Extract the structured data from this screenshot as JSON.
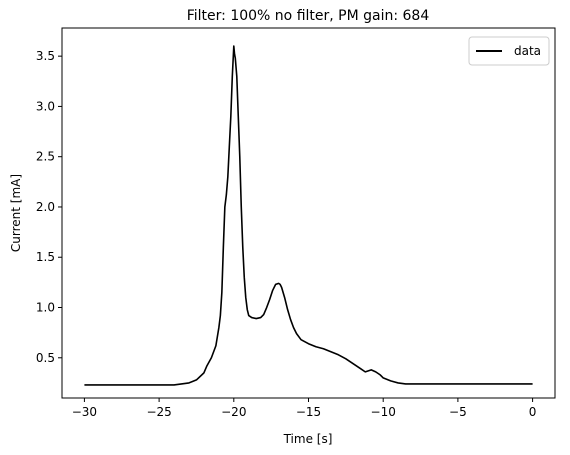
{
  "chart_data": {
    "type": "line",
    "title": "Filter: 100% no filter, PM gain: 684",
    "xlabel": "Time [s]",
    "ylabel": "Current [mA]",
    "xlim": [
      -31.5,
      1.5
    ],
    "ylim": [
      0.1,
      3.78
    ],
    "xticks": [
      -30,
      -25,
      -20,
      -15,
      -10,
      -5,
      0
    ],
    "xtick_labels": [
      "−30",
      "−25",
      "−20",
      "−15",
      "−10",
      "−5",
      "0"
    ],
    "yticks": [
      0.5,
      1.0,
      1.5,
      2.0,
      2.5,
      3.0,
      3.5
    ],
    "ytick_labels": [
      "0.5",
      "1.0",
      "1.5",
      "2.0",
      "2.5",
      "3.0",
      "3.5"
    ],
    "grid": false,
    "legend": {
      "position": "top-right"
    },
    "series": [
      {
        "name": "data",
        "color": "#000000",
        "x": [
          -30,
          -28,
          -26,
          -24,
          -23.5,
          -23,
          -22.5,
          -22,
          -21.8,
          -21.5,
          -21.2,
          -21,
          -20.9,
          -20.8,
          -20.7,
          -20.6,
          -20.5,
          -20.4,
          -20.3,
          -20.2,
          -20.1,
          -20,
          -19.95,
          -19.9,
          -19.8,
          -19.7,
          -19.6,
          -19.5,
          -19.4,
          -19.3,
          -19.2,
          -19.1,
          -19,
          -18.8,
          -18.5,
          -18.2,
          -18,
          -17.8,
          -17.6,
          -17.4,
          -17.2,
          -17,
          -16.9,
          -16.8,
          -16.6,
          -16.4,
          -16.2,
          -16,
          -15.8,
          -15.5,
          -15,
          -14.5,
          -14,
          -13.5,
          -13,
          -12.5,
          -12,
          -11.5,
          -11.2,
          -11,
          -10.8,
          -10.5,
          -10.2,
          -10,
          -9.5,
          -9,
          -8.5,
          -8,
          -7,
          -5,
          -3,
          0
        ],
        "y": [
          0.23,
          0.23,
          0.23,
          0.23,
          0.24,
          0.25,
          0.28,
          0.35,
          0.42,
          0.5,
          0.62,
          0.8,
          0.92,
          1.15,
          1.6,
          2.0,
          2.12,
          2.3,
          2.6,
          2.9,
          3.3,
          3.6,
          3.52,
          3.48,
          3.3,
          2.9,
          2.5,
          2.0,
          1.6,
          1.3,
          1.1,
          0.98,
          0.92,
          0.9,
          0.89,
          0.9,
          0.93,
          1.0,
          1.08,
          1.17,
          1.23,
          1.24,
          1.23,
          1.2,
          1.1,
          0.98,
          0.88,
          0.8,
          0.74,
          0.68,
          0.64,
          0.61,
          0.59,
          0.56,
          0.53,
          0.49,
          0.44,
          0.39,
          0.36,
          0.37,
          0.38,
          0.36,
          0.33,
          0.3,
          0.27,
          0.25,
          0.24,
          0.24,
          0.24,
          0.24,
          0.24,
          0.24
        ]
      }
    ]
  }
}
